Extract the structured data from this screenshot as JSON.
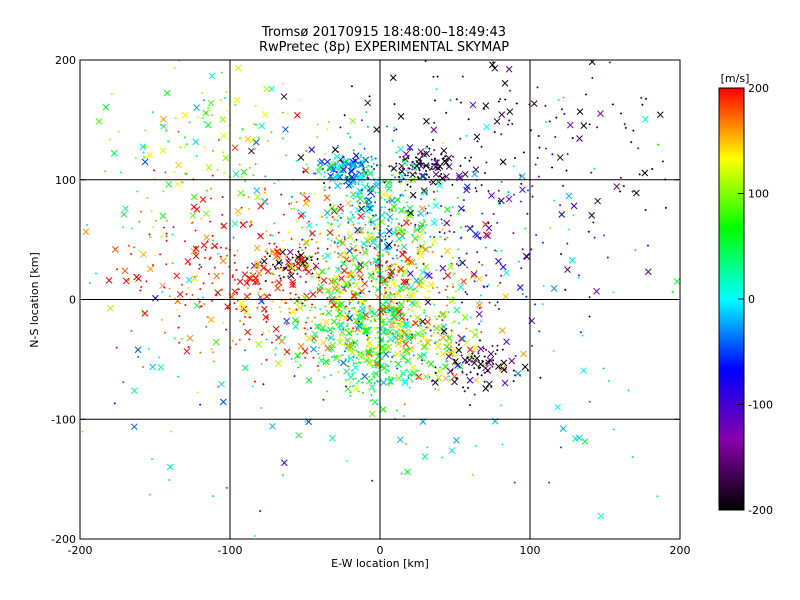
{
  "chart_data": {
    "type": "scatter",
    "title": "Tromsø 20170915 18:48:00–18:49:43",
    "subtitle": "RwPretec (8p) EXPERIMENTAL SKYMAP",
    "xlabel": "E-W location [km]",
    "ylabel": "N-S location [km]",
    "xlim": [
      -200,
      200
    ],
    "ylim": [
      -200,
      200
    ],
    "xticks": [
      -200,
      -100,
      0,
      100,
      200
    ],
    "yticks": [
      -200,
      -100,
      0,
      100,
      200
    ],
    "grid": true,
    "grid_values": {
      "x": [
        -100,
        0,
        100
      ],
      "y": [
        -100,
        0,
        100
      ]
    },
    "marker_types": [
      "x",
      "+"
    ],
    "colorbar": {
      "label": "[m/s]",
      "range": [
        -200,
        200
      ],
      "ticks": [
        200,
        100,
        0,
        -100,
        -200
      ],
      "colors": [
        "#ff0000",
        "#ffff00",
        "#00ff00",
        "#00ffff",
        "#0000ff",
        "#8800aa",
        "#000000"
      ],
      "placement": "right"
    },
    "clusters": [
      {
        "x": -20,
        "y": 110,
        "spread": [
          10,
          6
        ],
        "value": -20,
        "count": 140
      },
      {
        "x": 30,
        "y": 112,
        "spread": [
          12,
          8
        ],
        "value": -190,
        "count": 100
      },
      {
        "x": 0,
        "y": 70,
        "spread": [
          20,
          25
        ],
        "value": 0,
        "count": 260
      },
      {
        "x": -60,
        "y": 30,
        "spread": [
          10,
          6
        ],
        "value": -200,
        "count": 60
      },
      {
        "x": -90,
        "y": 20,
        "spread": [
          40,
          35
        ],
        "value": 200,
        "count": 380
      },
      {
        "x": 0,
        "y": 15,
        "spread": [
          30,
          35
        ],
        "value": 140,
        "count": 500
      },
      {
        "x": -5,
        "y": -35,
        "spread": [
          20,
          25
        ],
        "value": 60,
        "count": 400
      },
      {
        "x": 40,
        "y": -35,
        "spread": [
          15,
          15
        ],
        "value": 120,
        "count": 120
      },
      {
        "x": 65,
        "y": -55,
        "spread": [
          15,
          10
        ],
        "value": -190,
        "count": 90
      },
      {
        "x": 100,
        "y": 140,
        "spread": [
          70,
          40
        ],
        "value": -180,
        "count": 160
      },
      {
        "x": 60,
        "y": 50,
        "spread": [
          40,
          40
        ],
        "value": -110,
        "count": 140
      },
      {
        "x": -110,
        "y": 130,
        "spread": [
          40,
          30
        ],
        "value": 100,
        "count": 140
      },
      {
        "x": 0,
        "y": 0,
        "spread": [
          110,
          100
        ],
        "value": 0,
        "count": 300
      }
    ]
  }
}
